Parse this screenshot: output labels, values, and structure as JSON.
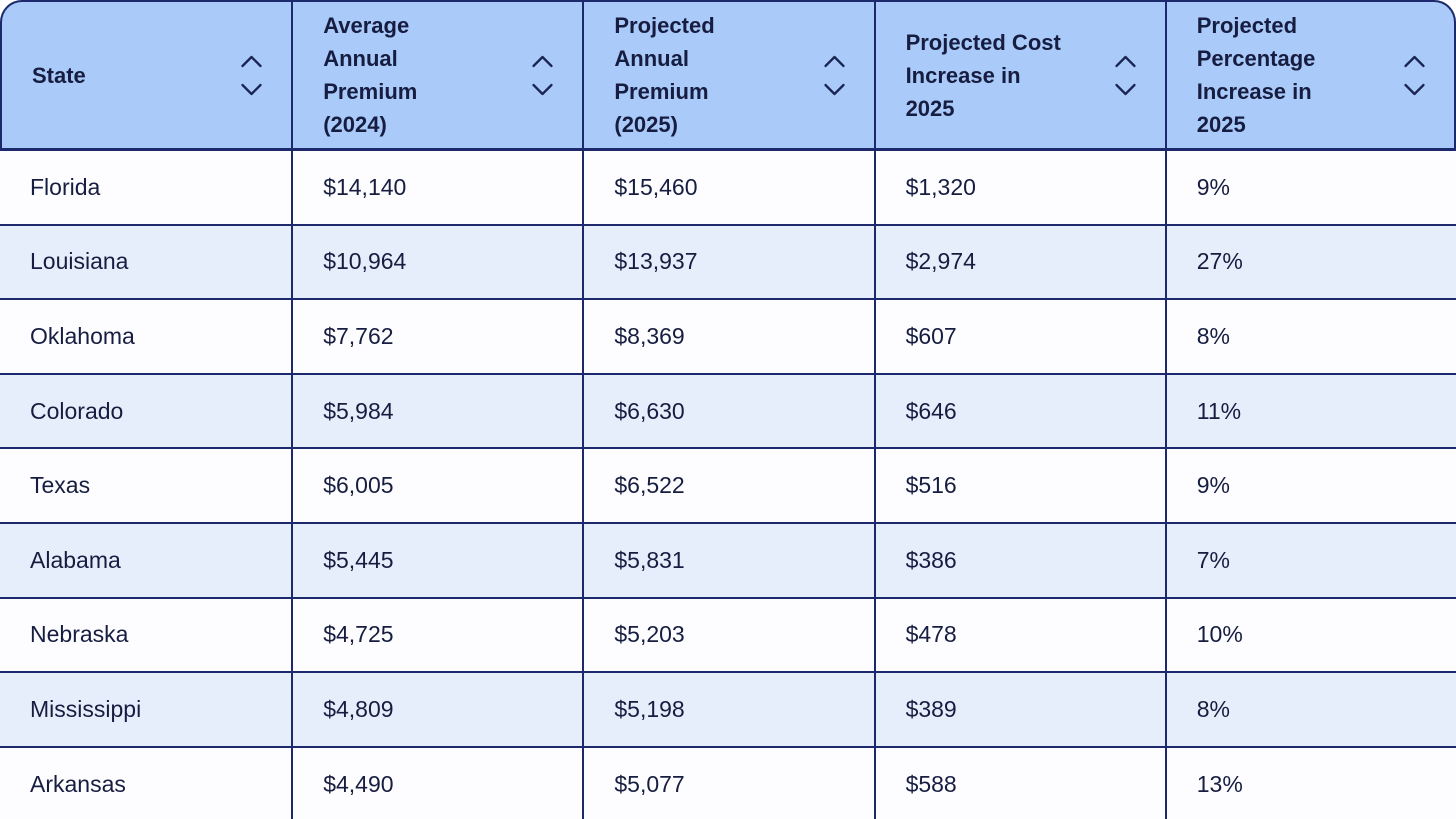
{
  "table": {
    "name": "state-insurance-premiums-table",
    "columns": [
      {
        "label": "State"
      },
      {
        "label": "Average Annual Premium (2024)"
      },
      {
        "label": "Projected Annual Premium (2025)"
      },
      {
        "label": "Projected Cost Increase in 2025"
      },
      {
        "label": "Projected Percentage Increase in 2025"
      }
    ],
    "sort_icons": [
      "chevron-up",
      "chevron-down"
    ],
    "rows": [
      [
        "Florida",
        "$14,140",
        "$15,460",
        "$1,320",
        "9%"
      ],
      [
        "Louisiana",
        "$10,964",
        "$13,937",
        "$2,974",
        "27%"
      ],
      [
        "Oklahoma",
        "$7,762",
        "$8,369",
        "$607",
        "8%"
      ],
      [
        "Colorado",
        "$5,984",
        "$6,630",
        "$646",
        "11%"
      ],
      [
        "Texas",
        "$6,005",
        "$6,522",
        "$516",
        "9%"
      ],
      [
        "Alabama",
        "$5,445",
        "$5,831",
        "$386",
        "7%"
      ],
      [
        "Nebraska",
        "$4,725",
        "$5,203",
        "$478",
        "10%"
      ],
      [
        "Mississippi",
        "$4,809",
        "$5,198",
        "$389",
        "8%"
      ],
      [
        "Arkansas",
        "$4,490",
        "$5,077",
        "$588",
        "13%"
      ]
    ]
  },
  "colors": {
    "header_bg": "#aacaf9",
    "row_bg": "#fdfdff",
    "row_alt_bg": "#e7eefb",
    "border": "#1d296d",
    "text": "#161d40"
  }
}
